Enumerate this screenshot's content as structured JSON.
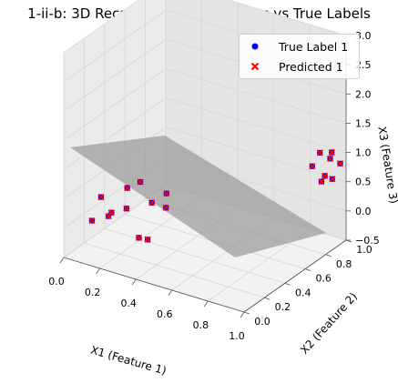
{
  "chart_data": {
    "type": "scatter",
    "title": "1-ii-b: 3D Recall Phase - Predictions vs True Labels",
    "xlabel": "X1 (Feature 1)",
    "ylabel": "X2 (Feature 2)",
    "zlabel": "X3 (Feature 3)",
    "xlim": [
      0.0,
      1.0
    ],
    "ylim": [
      0.0,
      1.0
    ],
    "zlim": [
      -0.5,
      3.0
    ],
    "x_ticks": [
      "0.0",
      "0.2",
      "0.4",
      "0.6",
      "0.8",
      "1.0"
    ],
    "y_ticks": [
      "0.0",
      "0.2",
      "0.4",
      "0.6",
      "0.8",
      "1.0"
    ],
    "z_ticks": [
      "−0.5",
      "0.0",
      "0.5",
      "1.0",
      "1.5",
      "2.0",
      "2.5",
      "3.0"
    ],
    "grid": true,
    "legend_position": "top-right",
    "decision_surface": {
      "color": "#999999",
      "opacity": 0.7
    },
    "series": [
      {
        "name": "True Label 1",
        "marker": "circle",
        "color": "#0000ff",
        "points": [
          [
            0.1,
            0.1,
            0.1
          ],
          [
            0.15,
            0.1,
            0.55
          ],
          [
            0.18,
            0.15,
            0.25
          ],
          [
            0.22,
            0.05,
            0.35
          ],
          [
            0.25,
            0.18,
            0.7
          ],
          [
            0.28,
            0.12,
            0.45
          ],
          [
            0.3,
            0.22,
            0.8
          ],
          [
            0.33,
            0.28,
            0.4
          ],
          [
            0.36,
            0.1,
            0.05
          ],
          [
            0.4,
            0.3,
            0.6
          ],
          [
            0.42,
            0.08,
            0.1
          ],
          [
            0.38,
            0.33,
            0.3
          ],
          [
            0.88,
            0.88,
            0.8
          ],
          [
            0.9,
            0.92,
            1.0
          ],
          [
            0.92,
            0.9,
            0.55
          ],
          [
            0.94,
            0.95,
            0.9
          ],
          [
            0.95,
            0.88,
            0.7
          ],
          [
            0.96,
            0.93,
            1.05
          ],
          [
            0.98,
            0.9,
            0.65
          ],
          [
            0.99,
            0.96,
            0.85
          ]
        ]
      },
      {
        "name": "Predicted 1",
        "marker": "x",
        "color": "#ff0000",
        "points": [
          [
            0.1,
            0.1,
            0.1
          ],
          [
            0.15,
            0.1,
            0.55
          ],
          [
            0.18,
            0.15,
            0.25
          ],
          [
            0.22,
            0.05,
            0.35
          ],
          [
            0.25,
            0.18,
            0.7
          ],
          [
            0.28,
            0.12,
            0.45
          ],
          [
            0.3,
            0.22,
            0.8
          ],
          [
            0.33,
            0.28,
            0.4
          ],
          [
            0.36,
            0.1,
            0.05
          ],
          [
            0.4,
            0.3,
            0.6
          ],
          [
            0.42,
            0.08,
            0.1
          ],
          [
            0.38,
            0.33,
            0.3
          ],
          [
            0.88,
            0.88,
            0.8
          ],
          [
            0.9,
            0.92,
            1.0
          ],
          [
            0.92,
            0.9,
            0.55
          ],
          [
            0.94,
            0.95,
            0.9
          ],
          [
            0.95,
            0.88,
            0.7
          ],
          [
            0.96,
            0.93,
            1.05
          ],
          [
            0.98,
            0.9,
            0.65
          ],
          [
            0.99,
            0.96,
            0.85
          ]
        ]
      }
    ]
  }
}
